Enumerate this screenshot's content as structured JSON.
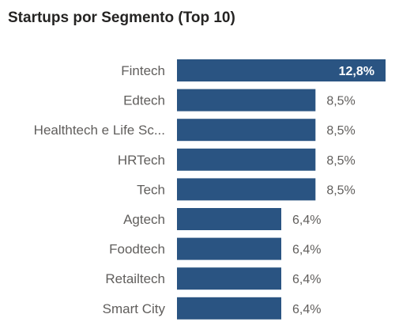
{
  "chart_data": {
    "type": "bar",
    "orientation": "horizontal",
    "title": "Startups por Segmento (Top 10)",
    "categories": [
      "Fintech",
      "Edtech",
      "Healthtech e Life Sc...",
      "HRTech",
      "Tech",
      "Agtech",
      "Foodtech",
      "Retailtech",
      "Smart City"
    ],
    "values": [
      12.8,
      8.5,
      8.5,
      8.5,
      8.5,
      6.4,
      6.4,
      6.4,
      6.4
    ],
    "value_labels": [
      "12,8%",
      "8,5%",
      "8,5%",
      "8,5%",
      "8,5%",
      "6,4%",
      "6,4%",
      "6,4%",
      "6,4%"
    ],
    "unit": "%",
    "xlim": [
      0,
      12.8
    ],
    "grid": false,
    "colors": {
      "bar": "#2a5482",
      "category_text": "#605e5c",
      "value_text": "#605e5c",
      "value_text_inside": "#ffffff"
    }
  }
}
